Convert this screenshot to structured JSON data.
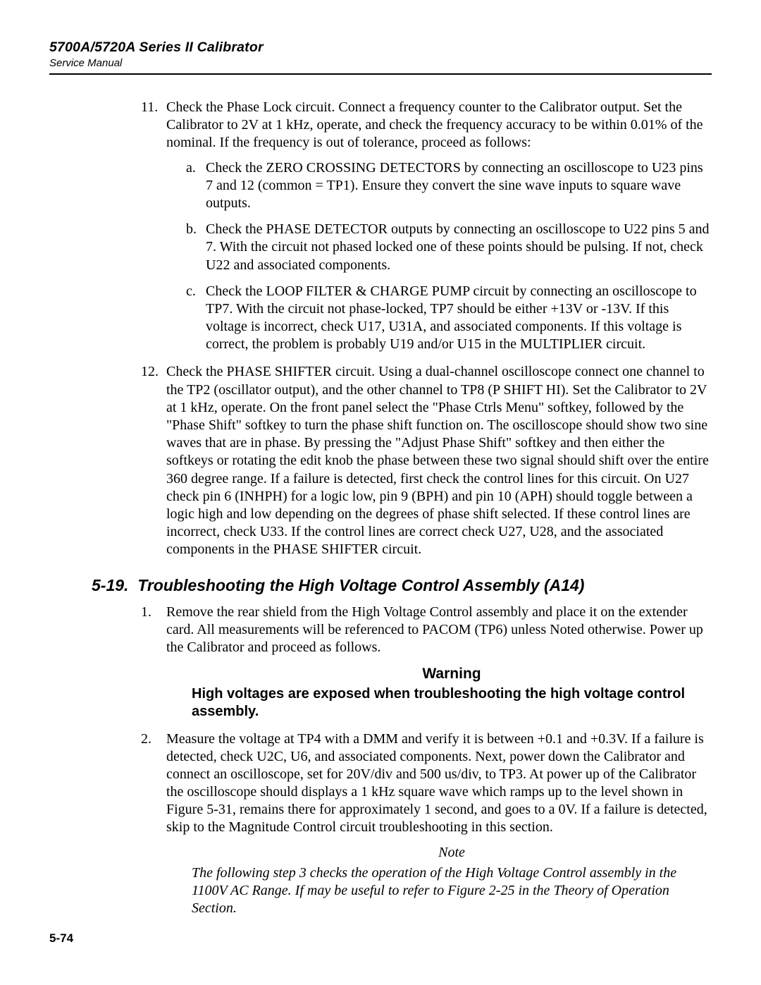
{
  "header": {
    "product_line": "5700A/5720A Series II Calibrator",
    "doc_type": "Service Manual"
  },
  "steps_first_block": [
    {
      "num": "11.",
      "text": "Check the Phase Lock circuit. Connect a frequency counter to the Calibrator output. Set the Calibrator to 2V at 1 kHz, operate, and check the frequency accuracy to be within 0.01% of the nominal. If the frequency is out of tolerance, proceed as follows:",
      "subs": [
        {
          "letter": "a.",
          "text": "Check the ZERO CROSSING DETECTORS by connecting an oscilloscope to U23 pins 7 and 12 (common = TP1). Ensure they convert the sine wave inputs to square wave outputs."
        },
        {
          "letter": "b.",
          "text": "Check the PHASE DETECTOR outputs by connecting an oscilloscope to U22 pins 5 and 7. With the circuit not phased locked one of these points should be pulsing. If not, check U22 and associated components."
        },
        {
          "letter": "c.",
          "text": "Check the LOOP FILTER & CHARGE PUMP circuit by connecting an oscilloscope to TP7. With the circuit not phase-locked, TP7 should be either +13V or -13V. If this voltage is incorrect, check U17, U31A, and associated components. If this voltage is correct, the problem is probably U19 and/or U15 in the MULTIPLIER circuit."
        }
      ]
    },
    {
      "num": "12.",
      "text": "Check the PHASE SHIFTER circuit. Using a dual-channel oscilloscope connect one channel to the TP2 (oscillator output), and the other channel to TP8 (P SHIFT HI). Set the Calibrator to 2V at 1 kHz, operate. On the front panel select the \"Phase Ctrls Menu\" softkey, followed by the \"Phase Shift\" softkey to turn the phase shift function on. The oscilloscope should show two sine waves that are in phase. By pressing the \"Adjust Phase Shift\" softkey and then either the softkeys or rotating the edit knob the phase between these two signal should shift over the entire 360 degree range. If a failure is detected, first check the control lines for this circuit. On U27 check pin 6 (INHPH) for a logic low, pin 9 (BPH) and pin 10 (APH) should toggle between a logic high and low depending on the degrees of phase shift selected. If these control lines are incorrect, check U33. If the control lines are correct check U27, U28, and the associated components in the PHASE SHIFTER circuit.",
      "subs": []
    }
  ],
  "section": {
    "number": "5-19.",
    "title": "Troubleshooting the High Voltage Control Assembly (A14)"
  },
  "steps_second_block": [
    {
      "num": "1.",
      "text": "Remove the rear shield from the High Voltage Control assembly and place it on the extender card. All measurements will be referenced to PACOM (TP6) unless Noted otherwise. Power up the Calibrator and proceed as follows."
    },
    {
      "num": "2.",
      "text": "Measure the voltage at TP4 with a DMM and verify it is between +0.1 and +0.3V. If a failure is detected, check U2C, U6, and associated components. Next, power down the Calibrator and connect an oscilloscope, set for 20V/div and 500 us/div, to TP3. At power up of the Calibrator the oscilloscope should displays a 1 kHz square wave which ramps up to the level shown in Figure 5-31, remains there for approximately 1 second, and goes to a 0V. If a failure is detected, skip to the Magnitude Control circuit troubleshooting in this section."
    }
  ],
  "warning": {
    "title": "Warning",
    "body": "High voltages are exposed when troubleshooting the high voltage control assembly."
  },
  "note": {
    "title": "Note",
    "body": "The following step 3 checks the operation of the High Voltage Control assembly in the 1100V AC Range. If may be useful to refer to Figure 2-25 in the Theory of Operation Section."
  },
  "page_number": "5-74"
}
